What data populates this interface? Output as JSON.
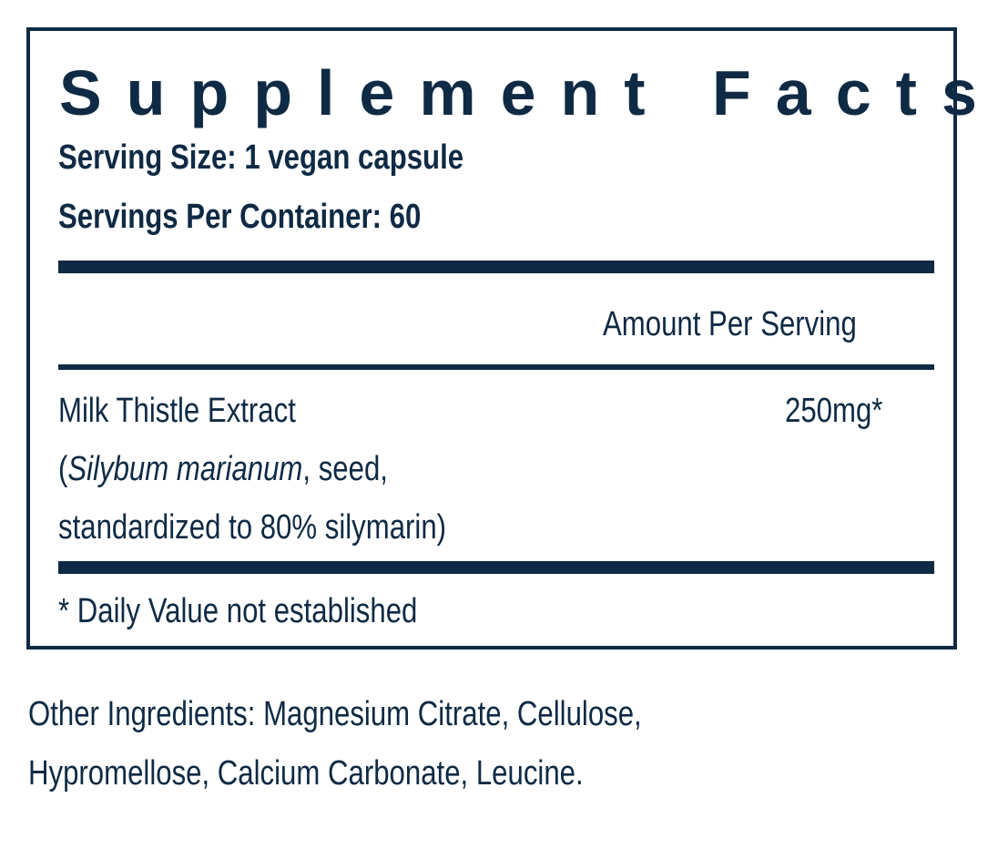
{
  "title": "Supplement Facts",
  "serving_size": "Serving Size: 1 vegan capsule",
  "servings_per_container": "Servings Per Container: 60",
  "amount_header": "Amount Per Serving",
  "ingredient": {
    "name": "Milk Thistle Extract",
    "detail_open": "(",
    "latin": "Silybum marianum",
    "detail_rest": ", seed,",
    "detail_line2": "standardized to 80% silymarin)",
    "amount": "250mg*"
  },
  "footnote": "* Daily Value not established",
  "other_ingredients_line1": "Other Ingredients: Magnesium Citrate, Cellulose,",
  "other_ingredients_line2": "Hypromellose, Calcium Carbonate, Leucine."
}
